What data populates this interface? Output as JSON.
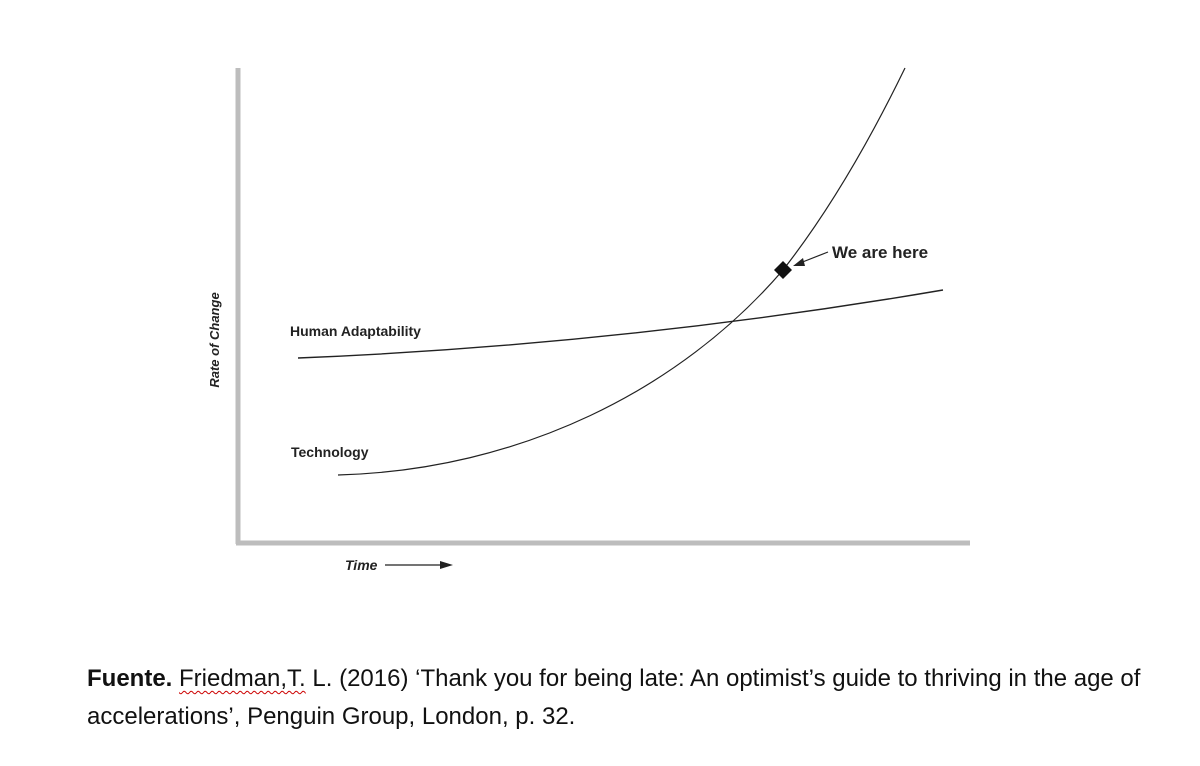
{
  "diagram": {
    "y_axis_label": "Rate of Change",
    "x_axis_label": "Time",
    "curves": [
      {
        "label": "Human Adaptability"
      },
      {
        "label": "Technology"
      }
    ],
    "annotation": "We are here"
  },
  "caption": {
    "label": "Fuente.",
    "author": "Friedman,T.",
    "text": "L. (2016) ‘Thank you for being late: An optimist’s guide to thriving in the age of accelerations’, Penguin Group, London, p. 32."
  }
}
